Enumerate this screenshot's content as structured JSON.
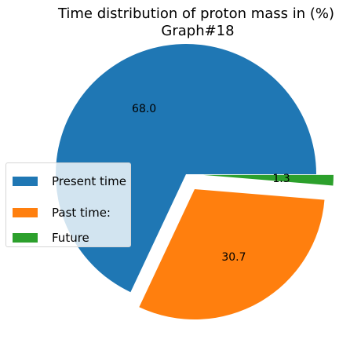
{
  "chart_data": {
    "type": "pie",
    "title": "Time distribution of proton mass in (%)",
    "subtitle": "Graph#18",
    "slices": [
      {
        "label": "Present time",
        "value": 68.0,
        "label_text": "68.0",
        "color": "#1f77b4",
        "exploded": false
      },
      {
        "label": "Past time:",
        "value": 30.7,
        "label_text": "30.7",
        "color": "#ff7f0e",
        "exploded": true
      },
      {
        "label": "Future",
        "value": 1.3,
        "label_text": "1.3",
        "color": "#2ca02c",
        "exploded": true
      }
    ],
    "legend_placement": "center-left"
  }
}
